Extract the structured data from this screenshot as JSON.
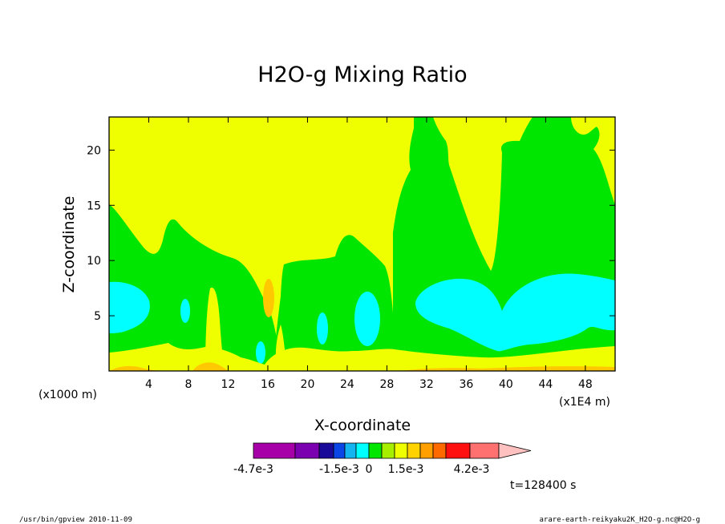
{
  "chart_data": {
    "type": "contour",
    "title": "H2O-g Mixing Ratio",
    "xlabel": "X-coordinate",
    "ylabel": "Z-coordinate",
    "x_unit": "(x1000 m)",
    "x_scale_note": "(x1E4 m)",
    "x_ticks": [
      4,
      8,
      12,
      16,
      20,
      24,
      28,
      32,
      36,
      40,
      44,
      48
    ],
    "y_ticks": [
      5,
      10,
      15,
      20
    ],
    "xlim": [
      0,
      51
    ],
    "ylim": [
      0,
      23
    ],
    "time_label": "t=128400 s",
    "colorbar": {
      "colors": [
        "#a800a8",
        "#7a00b0",
        "#1a0a9a",
        "#0a46e6",
        "#14b4f0",
        "#00ffff",
        "#00e600",
        "#a6ef00",
        "#f0ff00",
        "#ffd200",
        "#ffa000",
        "#ff6a00",
        "#ff1010",
        "#ff7070",
        "#ffc0c0"
      ],
      "tick_labels": [
        "-4.7e-3",
        "-1.5e-3",
        "0",
        "1.5e-3",
        "4.2e-3"
      ]
    },
    "fill_colors": {
      "yellow": "#f0ff00",
      "green": "#00e600",
      "cyan": "#00ffff",
      "orange": "#ffc800"
    }
  },
  "footer": {
    "left": "/usr/bin/gpview  2010-11-09",
    "right": "arare-earth-reikyaku2K_H2O-g.nc@H2O-g"
  }
}
